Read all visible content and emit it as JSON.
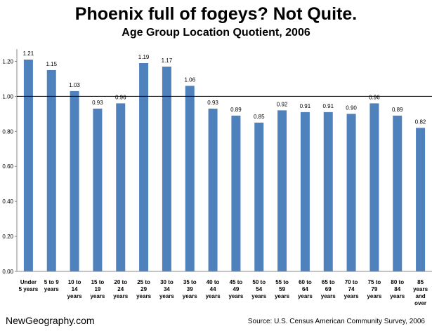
{
  "chart_data": {
    "type": "bar",
    "title": "Phoenix full of fogeys?  Not Quite.",
    "subtitle": "Age Group Location Quotient, 2006",
    "categories": [
      [
        "Under",
        "5 years"
      ],
      [
        "5 to 9",
        "years"
      ],
      [
        "10 to",
        "14",
        "years"
      ],
      [
        "15 to",
        "19",
        "years"
      ],
      [
        "20 to",
        "24",
        "years"
      ],
      [
        "25 to",
        "29",
        "years"
      ],
      [
        "30 to",
        "34",
        "years"
      ],
      [
        "35 to",
        "39",
        "years"
      ],
      [
        "40 to",
        "44",
        "years"
      ],
      [
        "45 to",
        "49",
        "years"
      ],
      [
        "50 to",
        "54",
        "years"
      ],
      [
        "55 to",
        "59",
        "years"
      ],
      [
        "60 to",
        "64",
        "years"
      ],
      [
        "65 to",
        "69",
        "years"
      ],
      [
        "70 to",
        "74",
        "years"
      ],
      [
        "75 to",
        "79",
        "years"
      ],
      [
        "80 to",
        "84",
        "years"
      ],
      [
        "85",
        "years",
        "and",
        "over"
      ]
    ],
    "values": [
      1.21,
      1.15,
      1.03,
      0.93,
      0.96,
      1.19,
      1.17,
      1.06,
      0.93,
      0.89,
      0.85,
      0.92,
      0.91,
      0.91,
      0.9,
      0.96,
      0.89,
      0.82
    ],
    "value_labels": [
      "1.21",
      "1.15",
      "1.03",
      "0.93",
      "0.96",
      "1.19",
      "1.17",
      "1.06",
      "0.93",
      "0.89",
      "0.85",
      "0.92",
      "0.91",
      "0.91",
      "0.90",
      "0.96",
      "0.89",
      "0.82"
    ],
    "yticks": [
      "0.00",
      "0.20",
      "0.40",
      "0.60",
      "0.80",
      "1.00",
      "1.20"
    ],
    "ylim": [
      0,
      1.25
    ],
    "reference_line": 1.0,
    "bar_color": "#4f81bd",
    "grid": false,
    "legend": "none"
  },
  "footer": {
    "brand": "NewGeography.com",
    "source": "Source: U.S. Census American Community Survey, 2006"
  }
}
